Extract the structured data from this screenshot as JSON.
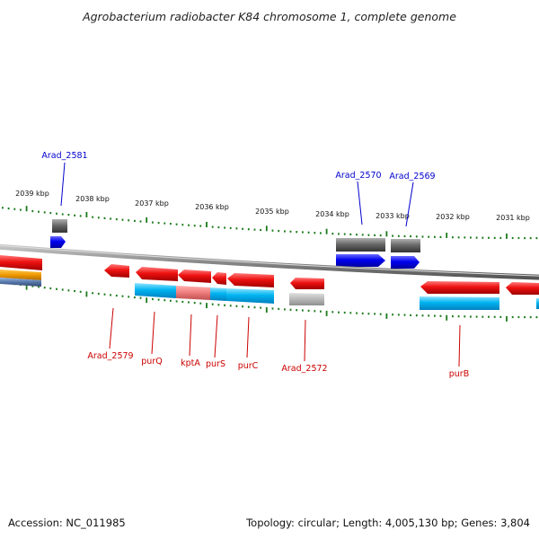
{
  "title": "Agrobacterium radiobacter K84 chromosome 1, complete genome",
  "footer": {
    "accession": "Accession: NC_011985",
    "topology": "Topology: circular; Length: 4,005,130 bp; Genes: 3,804"
  },
  "ticks": [
    "2039 kbp",
    "2038 kbp",
    "2037 kbp",
    "2036 kbp",
    "2035 kbp",
    "2034 kbp",
    "2033 kbp",
    "2032 kbp",
    "2031 kbp"
  ],
  "labels_forward": [
    "Arad_2581",
    "Arad_2570",
    "Arad_2569"
  ],
  "labels_reverse": [
    "Arad_2579",
    "purQ",
    "kptA",
    "purS",
    "purC",
    "Arad_2572",
    "purB"
  ],
  "colors": {
    "forward_label": "#0000cc",
    "reverse_label": "#cc0000",
    "gene_forward": "#0000ee",
    "gene_reverse": "#ee0000",
    "feature_gray": "#666666",
    "feature_cyan": "#00aaee",
    "feature_pink": "#ee7777",
    "feature_orange": "#ee9900",
    "tick_green": "#1a7a1a",
    "backbone": "#888888"
  }
}
